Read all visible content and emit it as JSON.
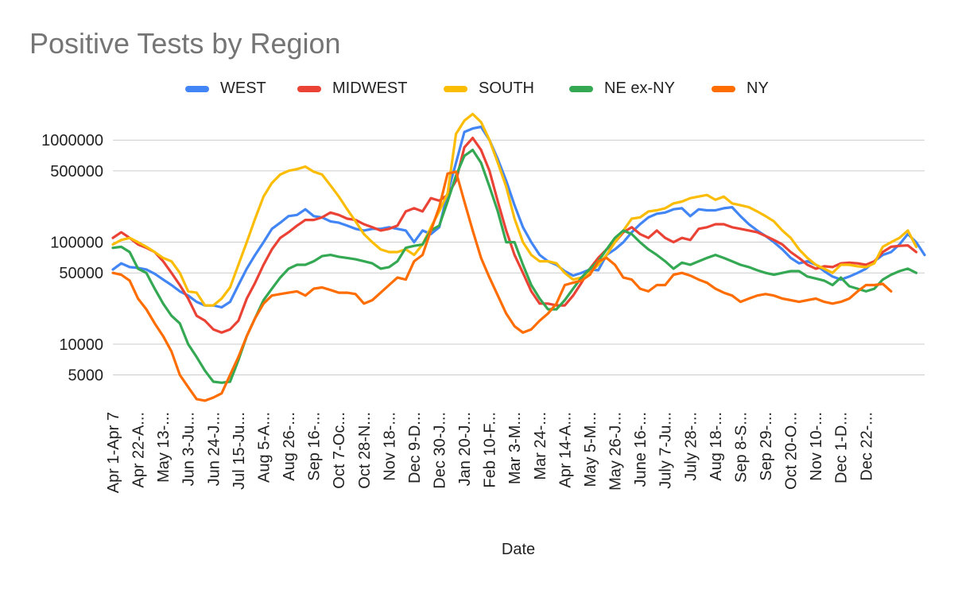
{
  "chart_data": {
    "type": "line",
    "title": "Positive Tests by Region",
    "xlabel": "Date",
    "ylabel": "",
    "y_scale": "log",
    "ylim": [
      2600,
      1600000
    ],
    "yticks": [
      5000,
      10000,
      50000,
      100000,
      500000,
      1000000
    ],
    "ytick_labels": [
      "5000",
      "10000",
      "50000",
      "100000",
      "500000",
      "1000000"
    ],
    "grid": true,
    "legend_position": "top",
    "x_tick_labels": [
      {
        "i": 0,
        "label": "Apr 1-Apr 7"
      },
      {
        "i": 3,
        "label": "Apr 22-A..."
      },
      {
        "i": 6,
        "label": "May 13-..."
      },
      {
        "i": 9,
        "label": "Jun 3-Ju..."
      },
      {
        "i": 12,
        "label": "Jun 24-J..."
      },
      {
        "i": 15,
        "label": "Jul 15-Ju..."
      },
      {
        "i": 18,
        "label": "Aug 5-A..."
      },
      {
        "i": 21,
        "label": "Aug 26-..."
      },
      {
        "i": 24,
        "label": "Sep 16-..."
      },
      {
        "i": 27,
        "label": "Oct 7-Oc..."
      },
      {
        "i": 30,
        "label": "Oct 28-N..."
      },
      {
        "i": 33,
        "label": "Nov 18-..."
      },
      {
        "i": 36,
        "label": "Dec 9-D..."
      },
      {
        "i": 39,
        "label": "Dec 30-J..."
      },
      {
        "i": 42,
        "label": "Jan 20-J..."
      },
      {
        "i": 45,
        "label": "Feb 10-F..."
      },
      {
        "i": 48,
        "label": "Mar 3-M..."
      },
      {
        "i": 51,
        "label": "Mar 24-..."
      },
      {
        "i": 54,
        "label": "Apr 14-A..."
      },
      {
        "i": 57,
        "label": "May 5-M..."
      },
      {
        "i": 60,
        "label": "May 26-J..."
      },
      {
        "i": 63,
        "label": "June 16-..."
      },
      {
        "i": 66,
        "label": "July 7-Ju..."
      },
      {
        "i": 69,
        "label": "July 28-..."
      },
      {
        "i": 72,
        "label": "Aug 18-..."
      },
      {
        "i": 75,
        "label": "Sep 8-S..."
      },
      {
        "i": 78,
        "label": "Sep 29-..."
      },
      {
        "i": 81,
        "label": "Oct 20-O..."
      },
      {
        "i": 84,
        "label": "Nov 10-..."
      },
      {
        "i": 87,
        "label": "Dec 1-D..."
      },
      {
        "i": 90,
        "label": "Dec 22-..."
      }
    ],
    "series": [
      {
        "name": "WEST",
        "color": "#4285F4",
        "values": [
          54000,
          62000,
          57000,
          56000,
          54000,
          49000,
          43000,
          38000,
          33000,
          30000,
          26000,
          24000,
          24000,
          23000,
          26000,
          38000,
          55000,
          75000,
          100000,
          135000,
          155000,
          180000,
          185000,
          210000,
          180000,
          175000,
          160000,
          155000,
          145000,
          135000,
          130000,
          135000,
          135000,
          140000,
          135000,
          130000,
          100000,
          130000,
          120000,
          140000,
          300000,
          600000,
          1200000,
          1300000,
          1350000,
          1000000,
          650000,
          400000,
          230000,
          140000,
          100000,
          75000,
          65000,
          60000,
          52000,
          47000,
          50000,
          54000,
          53000,
          75000,
          85000,
          100000,
          125000,
          150000,
          175000,
          190000,
          195000,
          210000,
          215000,
          180000,
          210000,
          205000,
          205000,
          215000,
          220000,
          180000,
          150000,
          130000,
          115000,
          100000,
          85000,
          70000,
          62000,
          65000,
          60000,
          52000,
          46000,
          43000,
          46000,
          50000,
          55000,
          65000,
          75000,
          80000,
          95000,
          120000,
          100000,
          75000
        ]
      },
      {
        "name": "MIDWEST",
        "color": "#EA4335",
        "values": [
          110000,
          125000,
          110000,
          95000,
          88000,
          80000,
          65000,
          50000,
          38000,
          28000,
          19000,
          17000,
          14000,
          13000,
          14000,
          17000,
          28000,
          40000,
          60000,
          85000,
          110000,
          125000,
          145000,
          165000,
          165000,
          175000,
          195000,
          185000,
          170000,
          165000,
          150000,
          140000,
          130000,
          135000,
          145000,
          200000,
          215000,
          200000,
          270000,
          255000,
          290000,
          400000,
          850000,
          1050000,
          800000,
          500000,
          250000,
          130000,
          75000,
          50000,
          33000,
          25000,
          25000,
          24000,
          24000,
          30000,
          40000,
          55000,
          70000,
          85000,
          100000,
          125000,
          140000,
          120000,
          110000,
          130000,
          110000,
          100000,
          110000,
          105000,
          135000,
          140000,
          150000,
          150000,
          140000,
          135000,
          130000,
          125000,
          115000,
          105000,
          95000,
          80000,
          70000,
          60000,
          55000,
          58000,
          57000,
          62000,
          63000,
          62000,
          60000,
          65000,
          80000,
          90000,
          92000,
          93000,
          80000
        ]
      },
      {
        "name": "SOUTH",
        "color": "#FBBC04",
        "values": [
          95000,
          105000,
          110000,
          100000,
          90000,
          80000,
          70000,
          65000,
          50000,
          33000,
          32000,
          24000,
          24000,
          28000,
          36000,
          60000,
          100000,
          170000,
          280000,
          380000,
          460000,
          500000,
          520000,
          550000,
          490000,
          460000,
          360000,
          280000,
          210000,
          160000,
          120000,
          100000,
          85000,
          80000,
          80000,
          85000,
          75000,
          95000,
          140000,
          200000,
          300000,
          1150000,
          1550000,
          1800000,
          1500000,
          1000000,
          600000,
          350000,
          170000,
          100000,
          75000,
          65000,
          65000,
          62000,
          50000,
          43000,
          45000,
          50000,
          60000,
          75000,
          100000,
          130000,
          170000,
          175000,
          200000,
          205000,
          215000,
          240000,
          250000,
          270000,
          280000,
          290000,
          260000,
          280000,
          240000,
          230000,
          220000,
          200000,
          180000,
          160000,
          130000,
          110000,
          85000,
          70000,
          60000,
          55000,
          50000,
          60000,
          60000,
          58000,
          57000,
          62000,
          90000,
          100000,
          110000,
          130000,
          90000
        ]
      },
      {
        "name": "NE ex-NY",
        "color": "#34A853",
        "values": [
          88000,
          90000,
          80000,
          55000,
          50000,
          35000,
          25000,
          19000,
          16000,
          10000,
          7500,
          5500,
          4300,
          4200,
          4300,
          7000,
          12000,
          18000,
          27000,
          35000,
          45000,
          55000,
          60000,
          60000,
          65000,
          73000,
          75000,
          72000,
          70000,
          68000,
          65000,
          62000,
          55000,
          57000,
          65000,
          88000,
          92000,
          95000,
          130000,
          145000,
          250000,
          450000,
          700000,
          800000,
          600000,
          350000,
          200000,
          100000,
          100000,
          60000,
          38000,
          28000,
          22000,
          22000,
          27000,
          35000,
          45000,
          55000,
          65000,
          85000,
          110000,
          130000,
          120000,
          100000,
          85000,
          75000,
          65000,
          55000,
          63000,
          60000,
          65000,
          70000,
          75000,
          70000,
          65000,
          60000,
          57000,
          53000,
          50000,
          48000,
          50000,
          52000,
          52000,
          46000,
          44000,
          42000,
          38000,
          45000,
          37000,
          35000,
          33000,
          35000,
          43000,
          48000,
          52000,
          55000,
          50000
        ]
      },
      {
        "name": "NY",
        "color": "#FF6D01",
        "values": [
          50000,
          48000,
          42000,
          28000,
          22000,
          16000,
          12000,
          8500,
          5000,
          3800,
          2900,
          2800,
          3000,
          3300,
          5000,
          7500,
          12000,
          18000,
          25000,
          30000,
          31000,
          32000,
          33000,
          30000,
          35000,
          36000,
          34000,
          32000,
          32000,
          31000,
          25000,
          27000,
          32000,
          38000,
          45000,
          43000,
          65000,
          75000,
          130000,
          220000,
          470000,
          490000,
          250000,
          130000,
          70000,
          45000,
          30000,
          20000,
          15000,
          13000,
          14000,
          17000,
          20000,
          25000,
          38000,
          40000,
          42000,
          48000,
          65000,
          70000,
          60000,
          45000,
          43000,
          35000,
          33000,
          38000,
          38000,
          48000,
          50000,
          47000,
          43000,
          40000,
          35000,
          32000,
          30000,
          26000,
          28000,
          30000,
          31000,
          30000,
          28000,
          27000,
          26000,
          27000,
          28000,
          26000,
          25000,
          26000,
          28000,
          33000,
          38000,
          38000,
          39000,
          33000
        ]
      }
    ]
  }
}
